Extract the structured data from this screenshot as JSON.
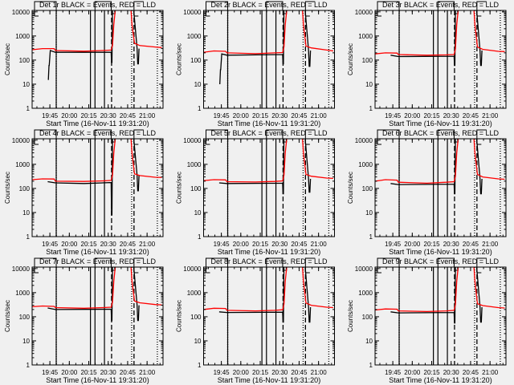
{
  "chart_data": {
    "type": "line",
    "layout": "3x3 grid",
    "ylabel": "Counts/sec",
    "xlabel": "Start Time (16-Nov-11 19:31:20)",
    "x_units": "minutes after 19:31:20",
    "xlim": [
      0,
      101
    ],
    "ylim": [
      1,
      11500
    ],
    "yscale": "log",
    "yticks": [
      {
        "v": 1,
        "label": "1"
      },
      {
        "v": 10,
        "label": "10"
      },
      {
        "v": 100,
        "label": "100"
      },
      {
        "v": 1000,
        "label": "1000"
      },
      {
        "v": 10000,
        "label": "10000"
      }
    ],
    "xticks": [
      {
        "t": 13.7,
        "label": "19:45"
      },
      {
        "t": 28.7,
        "label": "20:00"
      },
      {
        "t": 43.7,
        "label": "20:15"
      },
      {
        "t": 58.7,
        "label": "20:30"
      },
      {
        "t": 73.7,
        "label": "20:45"
      },
      {
        "t": 88.7,
        "label": "21:00"
      }
    ],
    "vlines": [
      {
        "t": 18.6,
        "style": "solid"
      },
      {
        "t": 18.6,
        "style": "dotted"
      },
      {
        "t": 45.0,
        "style": "solid"
      },
      {
        "t": 48.5,
        "style": "solid"
      },
      {
        "t": 55.8,
        "style": "solid"
      },
      {
        "t": 61.3,
        "style": "dashed"
      },
      {
        "t": 76.8,
        "style": "dotted"
      },
      {
        "t": 78.6,
        "style": "dashed"
      },
      {
        "t": 96.6,
        "style": "dotted"
      }
    ],
    "colors": {
      "events": "#000000",
      "lld": "#ff0000"
    },
    "panels": [
      {
        "title": "Det 1r BLACK = Events, RED = LLD",
        "red": [
          [
            0,
            270
          ],
          [
            8,
            300
          ],
          [
            17,
            300
          ],
          [
            18,
            250
          ],
          [
            40,
            235
          ],
          [
            55,
            250
          ],
          [
            61,
            260
          ],
          [
            62,
            400
          ],
          [
            63,
            3000
          ],
          [
            64,
            10000
          ],
          [
            65,
            20000
          ],
          [
            76,
            20000
          ],
          [
            77,
            3000
          ],
          [
            79,
            500
          ],
          [
            83,
            400
          ],
          [
            95,
            350
          ],
          [
            100,
            330
          ]
        ],
        "black": [
          [
            12.5,
            15
          ],
          [
            13,
            60
          ],
          [
            13.2,
            60
          ],
          [
            14,
            250
          ],
          [
            18,
            210
          ],
          [
            61,
            210
          ],
          [
            61.3,
            80
          ],
          [
            61.6,
            80
          ],
          [
            62,
            20000
          ],
          [
            78,
            20000
          ],
          [
            81,
            300
          ],
          [
            81.5,
            70
          ],
          [
            82,
            70
          ],
          [
            82.5,
            300
          ]
        ]
      },
      {
        "title": "Det 2r BLACK = Events, RED = LLD",
        "red": [
          [
            0,
            210
          ],
          [
            8,
            240
          ],
          [
            17,
            230
          ],
          [
            18,
            200
          ],
          [
            40,
            185
          ],
          [
            55,
            200
          ],
          [
            61,
            205
          ],
          [
            62,
            350
          ],
          [
            63,
            3000
          ],
          [
            64,
            10000
          ],
          [
            65,
            20000
          ],
          [
            76,
            20000
          ],
          [
            77,
            3000
          ],
          [
            79,
            380
          ],
          [
            83,
            320
          ],
          [
            95,
            260
          ],
          [
            100,
            240
          ]
        ],
        "black": [
          [
            12.5,
            10
          ],
          [
            13,
            40
          ],
          [
            13.2,
            40
          ],
          [
            14,
            180
          ],
          [
            18,
            160
          ],
          [
            61,
            170
          ],
          [
            61.3,
            70
          ],
          [
            61.6,
            70
          ],
          [
            62,
            20000
          ],
          [
            78,
            20000
          ],
          [
            81,
            250
          ],
          [
            81.5,
            55
          ],
          [
            82,
            55
          ],
          [
            82.5,
            250
          ]
        ]
      },
      {
        "title": "Det 3r BLACK = Events, RED = LLD",
        "red": [
          [
            0,
            180
          ],
          [
            8,
            200
          ],
          [
            17,
            195
          ],
          [
            18,
            170
          ],
          [
            40,
            160
          ],
          [
            55,
            165
          ],
          [
            61,
            170
          ],
          [
            62,
            300
          ],
          [
            63,
            3000
          ],
          [
            64,
            10000
          ],
          [
            65,
            20000
          ],
          [
            76,
            20000
          ],
          [
            77,
            3000
          ],
          [
            79,
            350
          ],
          [
            83,
            280
          ],
          [
            95,
            230
          ],
          [
            100,
            225
          ]
        ],
        "black": [
          [
            12,
            160
          ],
          [
            18,
            140
          ],
          [
            61,
            145
          ],
          [
            61.3,
            60
          ],
          [
            61.6,
            60
          ],
          [
            62,
            20000
          ],
          [
            78,
            20000
          ],
          [
            81,
            250
          ],
          [
            81.5,
            60
          ],
          [
            82,
            60
          ],
          [
            82.5,
            250
          ]
        ]
      },
      {
        "title": "Det 4r BLACK = Events, RED = LLD",
        "red": [
          [
            0,
            230
          ],
          [
            8,
            250
          ],
          [
            17,
            245
          ],
          [
            18,
            200
          ],
          [
            40,
            195
          ],
          [
            55,
            205
          ],
          [
            61,
            215
          ],
          [
            62,
            350
          ],
          [
            63,
            3000
          ],
          [
            64,
            10000
          ],
          [
            65,
            20000
          ],
          [
            76,
            20000
          ],
          [
            77,
            3000
          ],
          [
            79,
            400
          ],
          [
            83,
            340
          ],
          [
            95,
            290
          ],
          [
            100,
            285
          ]
        ],
        "black": [
          [
            12,
            190
          ],
          [
            18,
            170
          ],
          [
            40,
            160
          ],
          [
            61,
            175
          ],
          [
            61.3,
            8
          ],
          [
            61.6,
            8
          ],
          [
            62,
            20000
          ],
          [
            78,
            20000
          ],
          [
            81,
            350
          ],
          [
            81.5,
            80
          ],
          [
            82,
            80
          ],
          [
            82.5,
            350
          ]
        ]
      },
      {
        "title": "Det 5r BLACK = Events, RED = LLD",
        "red": [
          [
            0,
            210
          ],
          [
            8,
            230
          ],
          [
            17,
            225
          ],
          [
            18,
            190
          ],
          [
            40,
            185
          ],
          [
            55,
            195
          ],
          [
            61,
            205
          ],
          [
            62,
            350
          ],
          [
            63,
            3000
          ],
          [
            64,
            10000
          ],
          [
            65,
            20000
          ],
          [
            76,
            20000
          ],
          [
            77,
            3000
          ],
          [
            79,
            380
          ],
          [
            83,
            320
          ],
          [
            95,
            270
          ],
          [
            100,
            260
          ]
        ],
        "black": [
          [
            12,
            170
          ],
          [
            18,
            160
          ],
          [
            61,
            165
          ],
          [
            61.3,
            60
          ],
          [
            61.6,
            60
          ],
          [
            62,
            20000
          ],
          [
            78,
            20000
          ],
          [
            81,
            250
          ],
          [
            81.5,
            70
          ],
          [
            82,
            70
          ],
          [
            82.5,
            250
          ]
        ]
      },
      {
        "title": "Det 6r BLACK = Events, RED = LLD",
        "red": [
          [
            0,
            200
          ],
          [
            8,
            230
          ],
          [
            17,
            220
          ],
          [
            18,
            180
          ],
          [
            40,
            165
          ],
          [
            55,
            180
          ],
          [
            61,
            190
          ],
          [
            62,
            320
          ],
          [
            63,
            3000
          ],
          [
            64,
            10000
          ],
          [
            65,
            20000
          ],
          [
            76,
            20000
          ],
          [
            77,
            3000
          ],
          [
            79,
            380
          ],
          [
            83,
            300
          ],
          [
            95,
            250
          ],
          [
            100,
            240
          ]
        ],
        "black": [
          [
            12,
            160
          ],
          [
            18,
            145
          ],
          [
            61,
            150
          ],
          [
            61.3,
            60
          ],
          [
            61.6,
            60
          ],
          [
            62,
            20000
          ],
          [
            78,
            20000
          ],
          [
            81,
            250
          ],
          [
            81.5,
            60
          ],
          [
            82,
            60
          ],
          [
            82.5,
            250
          ]
        ]
      },
      {
        "title": "Det 7r BLACK = Events, RED = LLD",
        "red": [
          [
            0,
            260
          ],
          [
            8,
            280
          ],
          [
            17,
            270
          ],
          [
            18,
            240
          ],
          [
            40,
            225
          ],
          [
            55,
            240
          ],
          [
            61,
            250
          ],
          [
            62,
            400
          ],
          [
            63,
            3000
          ],
          [
            64,
            10000
          ],
          [
            65,
            20000
          ],
          [
            76,
            20000
          ],
          [
            77,
            3000
          ],
          [
            79,
            450
          ],
          [
            83,
            380
          ],
          [
            95,
            320
          ],
          [
            100,
            310
          ]
        ],
        "black": [
          [
            12,
            230
          ],
          [
            18,
            200
          ],
          [
            61,
            205
          ],
          [
            61.3,
            70
          ],
          [
            61.6,
            70
          ],
          [
            62,
            20000
          ],
          [
            78,
            20000
          ],
          [
            81,
            300
          ],
          [
            81.5,
            70
          ],
          [
            82,
            70
          ],
          [
            82.5,
            300
          ]
        ]
      },
      {
        "title": "Det 8r BLACK = Events, RED = LLD",
        "red": [
          [
            0,
            200
          ],
          [
            8,
            225
          ],
          [
            17,
            220
          ],
          [
            18,
            185
          ],
          [
            40,
            175
          ],
          [
            55,
            185
          ],
          [
            61,
            195
          ],
          [
            62,
            330
          ],
          [
            63,
            3000
          ],
          [
            64,
            10000
          ],
          [
            65,
            20000
          ],
          [
            76,
            20000
          ],
          [
            77,
            3000
          ],
          [
            79,
            370
          ],
          [
            83,
            300
          ],
          [
            95,
            250
          ],
          [
            100,
            240
          ]
        ],
        "black": [
          [
            12,
            160
          ],
          [
            18,
            150
          ],
          [
            61,
            155
          ],
          [
            61.3,
            60
          ],
          [
            61.6,
            60
          ],
          [
            62,
            20000
          ],
          [
            78,
            20000
          ],
          [
            81,
            250
          ],
          [
            81.5,
            60
          ],
          [
            82,
            60
          ],
          [
            82.5,
            250
          ]
        ]
      },
      {
        "title": "Det 9r BLACK = Events, RED = LLD",
        "red": [
          [
            0,
            190
          ],
          [
            8,
            210
          ],
          [
            17,
            205
          ],
          [
            18,
            175
          ],
          [
            40,
            165
          ],
          [
            55,
            175
          ],
          [
            61,
            185
          ],
          [
            62,
            320
          ],
          [
            63,
            3000
          ],
          [
            64,
            10000
          ],
          [
            65,
            20000
          ],
          [
            76,
            20000
          ],
          [
            77,
            3000
          ],
          [
            79,
            350
          ],
          [
            83,
            290
          ],
          [
            95,
            240
          ],
          [
            100,
            230
          ]
        ],
        "black": [
          [
            12,
            160
          ],
          [
            18,
            145
          ],
          [
            61,
            150
          ],
          [
            61.3,
            55
          ],
          [
            61.6,
            55
          ],
          [
            62,
            20000
          ],
          [
            78,
            20000
          ],
          [
            81,
            250
          ],
          [
            81.5,
            60
          ],
          [
            82,
            60
          ],
          [
            82.5,
            250
          ]
        ]
      }
    ]
  }
}
